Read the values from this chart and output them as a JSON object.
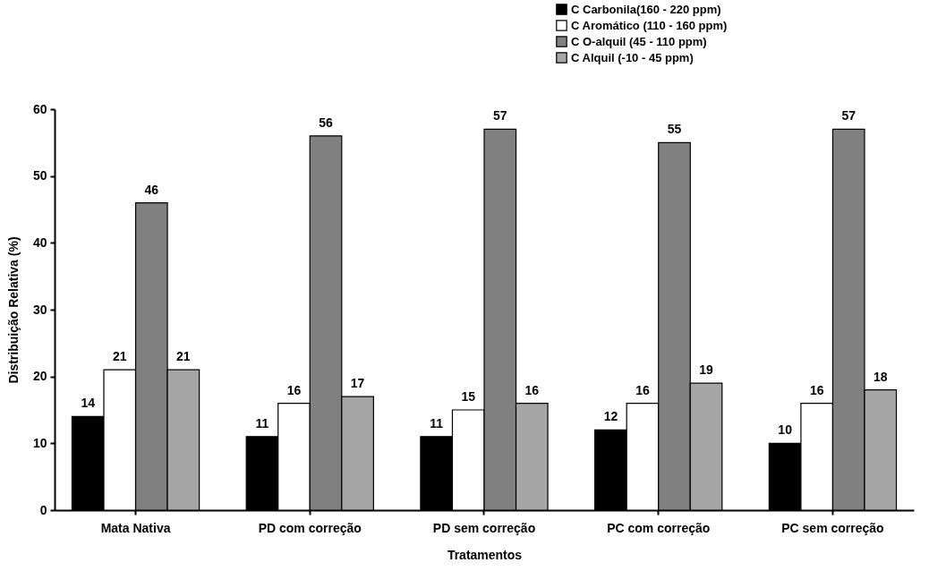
{
  "chart_data": {
    "type": "bar",
    "xlabel": "Tratamentos",
    "ylabel": "Distribuição Relativa (%)",
    "categories": [
      "Mata Nativa",
      "PD com correção",
      "PD sem correção",
      "PC com correção",
      "PC sem correção"
    ],
    "series": [
      {
        "name": "C Carbonila(160 - 220 ppm)",
        "color": "#000000",
        "values": [
          14,
          11,
          11,
          12,
          10
        ]
      },
      {
        "name": "C Aromático  (110 - 160 ppm)",
        "color": "#ffffff",
        "values": [
          21,
          16,
          15,
          16,
          16
        ]
      },
      {
        "name": "C O-alquil (45 - 110 ppm)",
        "color": "#808080",
        "values": [
          46,
          56,
          57,
          55,
          57
        ]
      },
      {
        "name": "C Alquil (-10 - 45 ppm)",
        "color": "#a6a6a6",
        "values": [
          21,
          17,
          16,
          19,
          18
        ]
      }
    ],
    "ylim": [
      0,
      60
    ],
    "yticks": [
      0,
      10,
      20,
      30,
      40,
      50,
      60
    ],
    "grid": false,
    "legend": "top right",
    "data_labels": true
  }
}
